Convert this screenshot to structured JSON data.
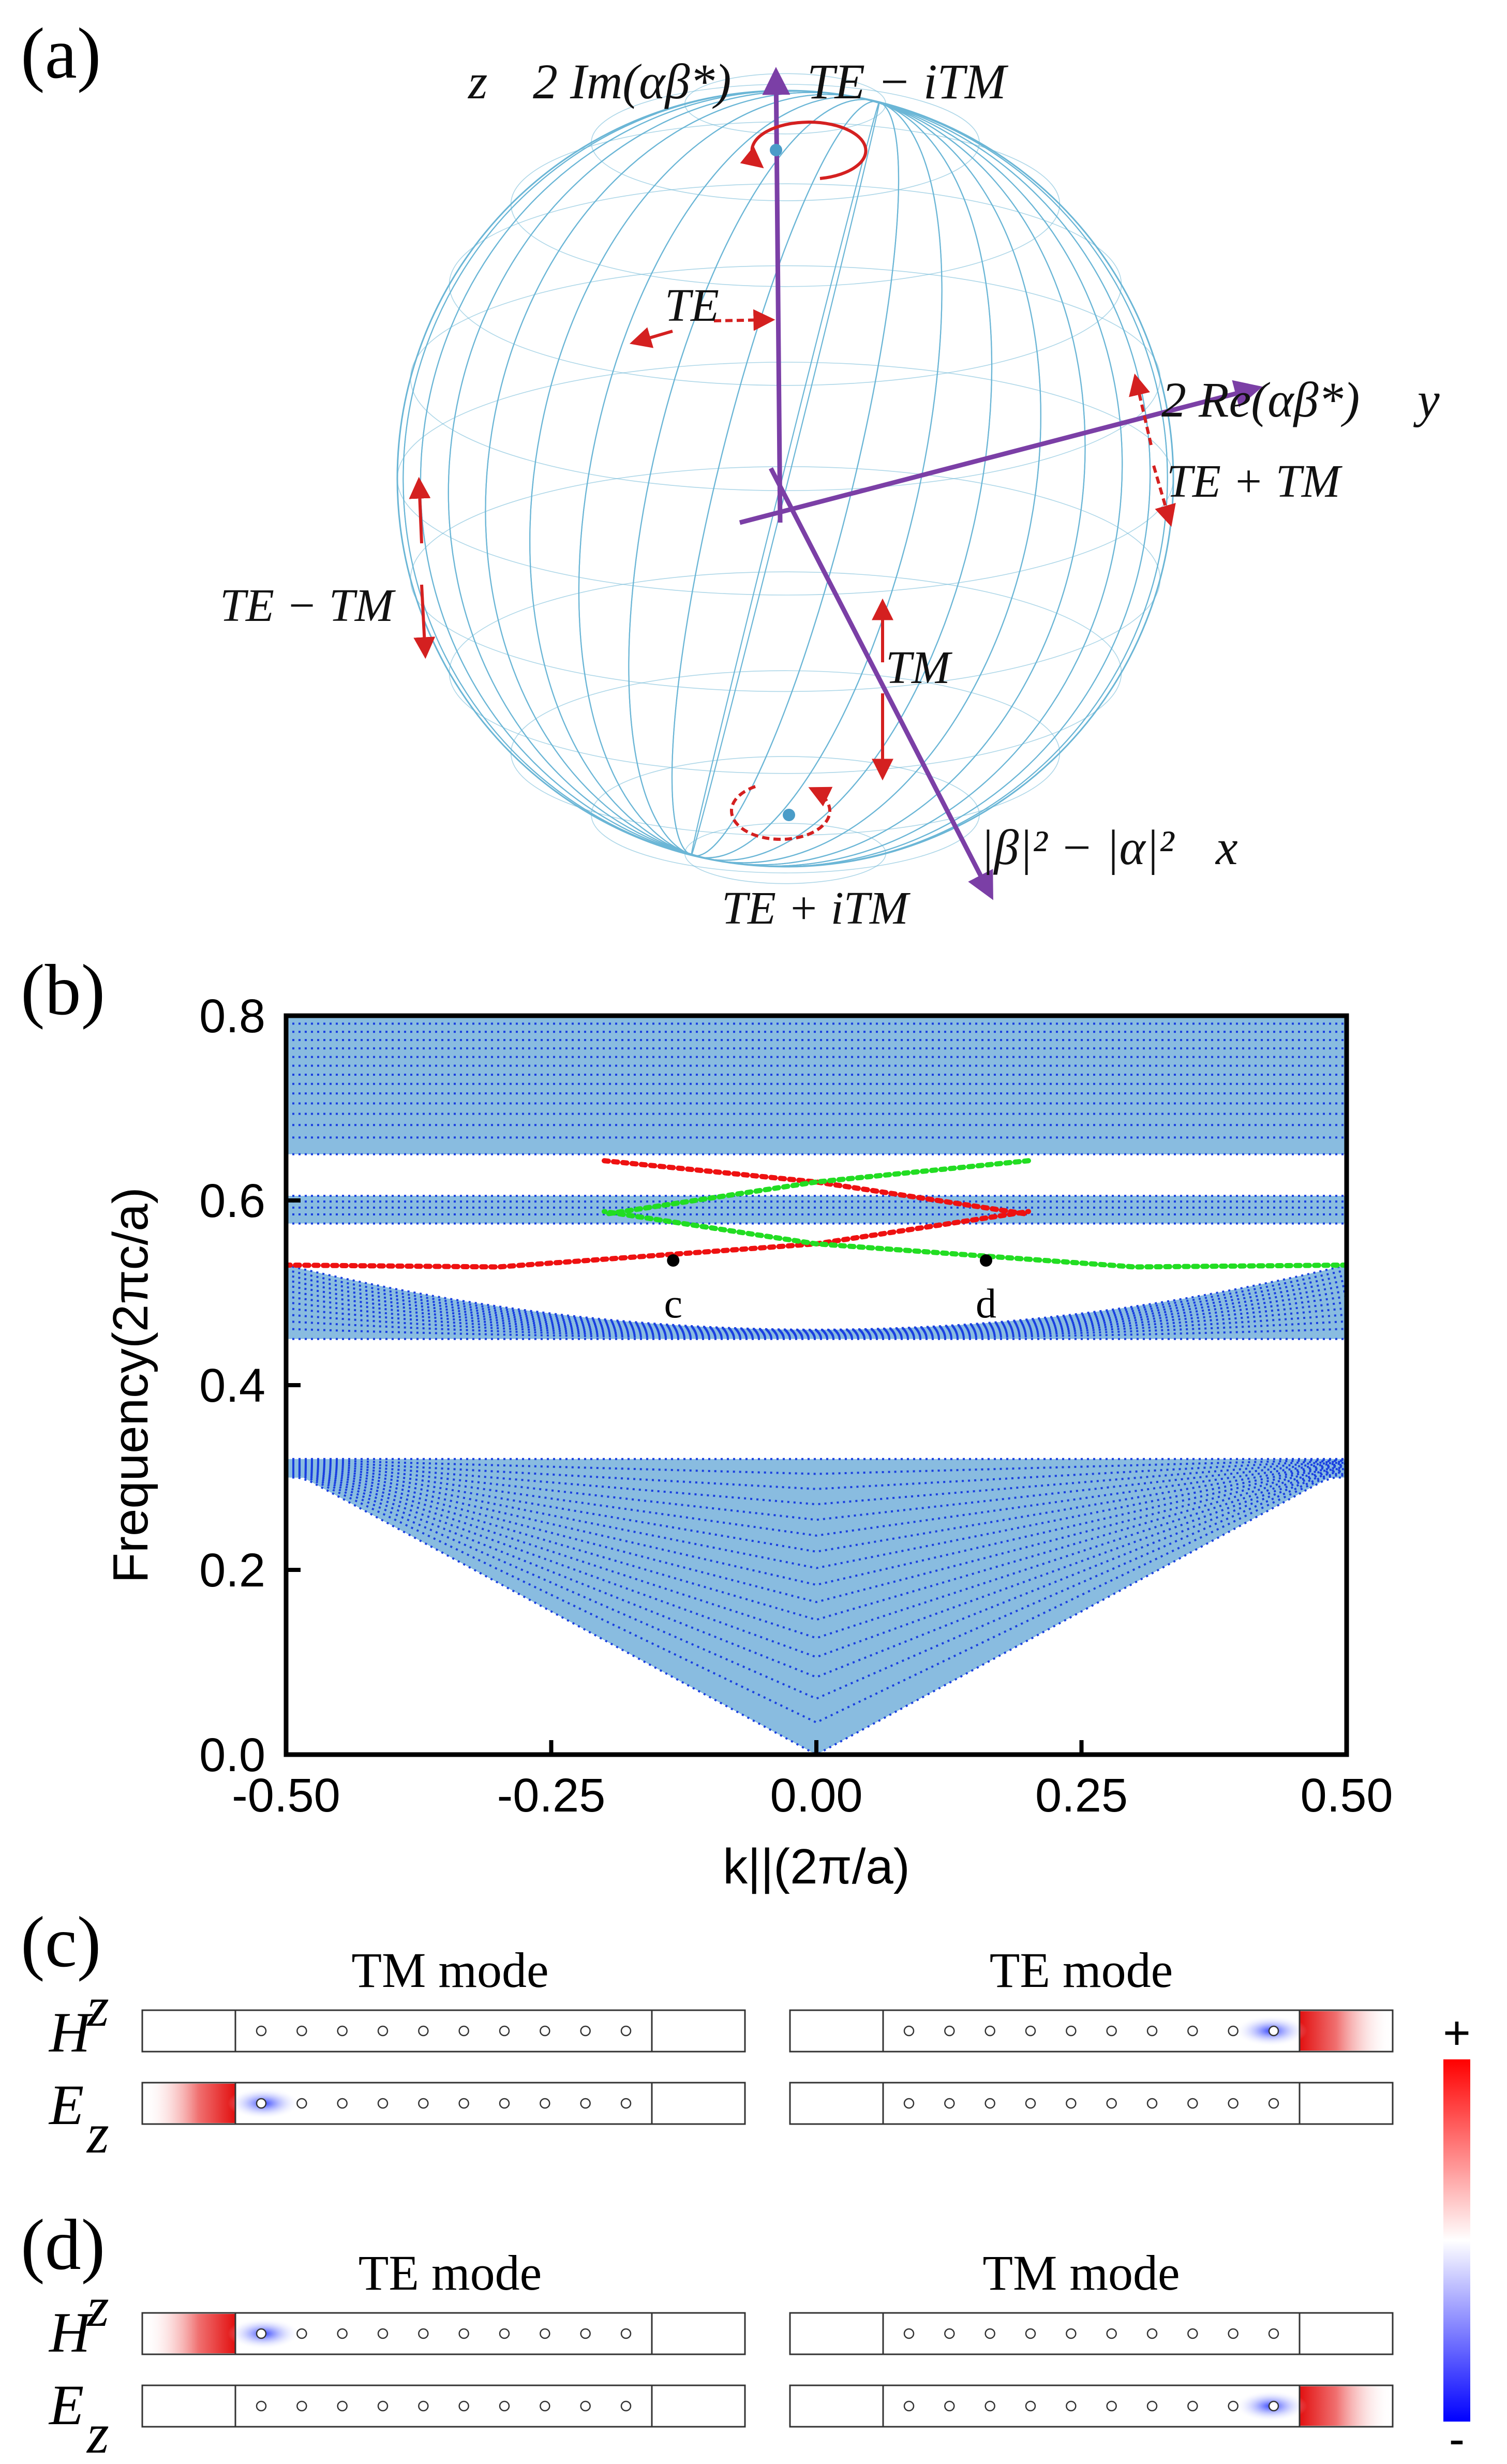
{
  "panels": {
    "a": "(a)",
    "b": "(b)",
    "c": "(c)",
    "d": "(d)"
  },
  "sphere": {
    "axis_z": "z",
    "axis_z_expr": "2 Im(αβ*)",
    "axis_y": "y",
    "axis_y_expr": "2 Re(αβ*)",
    "axis_x": "x",
    "axis_x_expr": "|β|² − |α|²",
    "labels": {
      "north": "TE − iTM",
      "south": "TE + iTM",
      "te": "TE",
      "tm": "TM",
      "te_plus_tm": "TE + TM",
      "te_minus_tm": "TE − TM"
    },
    "colors": {
      "grid": "#6bb6d6",
      "axis": "#7b3fa6",
      "arrow": "#d42020"
    }
  },
  "chart_data": {
    "type": "scatter",
    "xlabel": "k||(2π/a)",
    "ylabel": "Frequency(2πc/a)",
    "xlim": [
      -0.5,
      0.5
    ],
    "ylim": [
      0.0,
      0.8
    ],
    "xticks": [
      "-0.50",
      "-0.25",
      "0.00",
      "0.25",
      "0.50"
    ],
    "yticks": [
      "0.0",
      "0.2",
      "0.4",
      "0.6",
      "0.8"
    ],
    "bulk_bands": [
      {
        "lower_edge": "0.0 at k=0, 0.30 at k=±0.5",
        "upper_edge": 0.32
      },
      {
        "lower_edge": 0.45,
        "upper_edge": "0.53 at k=±0.5, 0.46 at k=0"
      },
      {
        "range": [
          0.575,
          0.605
        ]
      },
      {
        "range": [
          0.65,
          0.8
        ]
      }
    ],
    "series": [
      {
        "color": "#ee1111",
        "points": [
          [
            -0.5,
            0.53
          ],
          [
            -0.3,
            0.528
          ],
          [
            0.0,
            0.553
          ],
          [
            0.2,
            0.588
          ]
        ]
      },
      {
        "color": "#ee1111",
        "points": [
          [
            -0.2,
            0.643
          ],
          [
            0.0,
            0.62
          ],
          [
            0.2,
            0.585
          ]
        ]
      },
      {
        "color": "#22dd22",
        "points": [
          [
            0.5,
            0.53
          ],
          [
            0.3,
            0.528
          ],
          [
            0.0,
            0.553
          ],
          [
            -0.2,
            0.588
          ]
        ]
      },
      {
        "color": "#22dd22",
        "points": [
          [
            0.2,
            0.643
          ],
          [
            0.0,
            0.62
          ],
          [
            -0.2,
            0.585
          ]
        ]
      }
    ],
    "marked_points": [
      {
        "label": "c",
        "x": -0.135,
        "y": 0.535
      },
      {
        "label": "d",
        "x": 0.16,
        "y": 0.535
      }
    ],
    "bulk_color": "#89bce0",
    "dot_color": "#1a3fe0"
  },
  "modes": {
    "c_left_title": "TM mode",
    "c_right_title": "TE mode",
    "d_left_title": "TE mode",
    "d_right_title": "TM mode",
    "hz": "H",
    "ez": "E",
    "sub": "z",
    "colorbar_plus": "+",
    "colorbar_minus": "-"
  }
}
